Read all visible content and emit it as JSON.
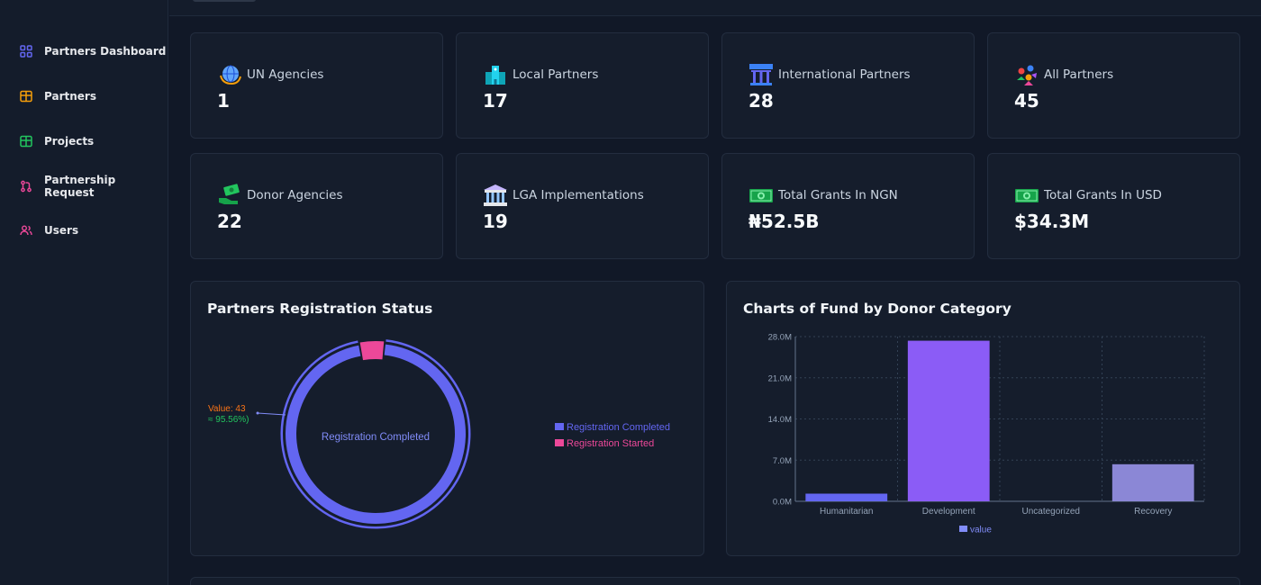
{
  "sidebar": {
    "items": [
      {
        "label": "Partners Dashboard",
        "icon": "grid-icon",
        "color": "#6366f1"
      },
      {
        "label": "Partners",
        "icon": "table-icon",
        "color": "#f59e0b"
      },
      {
        "label": "Projects",
        "icon": "table-icon",
        "color": "#22c55e"
      },
      {
        "label": "Partnership Request",
        "icon": "pull-request-icon",
        "color": "#ec4899"
      },
      {
        "label": "Users",
        "icon": "users-icon",
        "color": "#ec4899"
      }
    ]
  },
  "stats": [
    {
      "label": "UN Agencies",
      "value": "1",
      "icon": "globe-icon"
    },
    {
      "label": "Local Partners",
      "value": "17",
      "icon": "hospital-icon"
    },
    {
      "label": "International Partners",
      "value": "28",
      "icon": "ngo-building-icon"
    },
    {
      "label": "All Partners",
      "value": "45",
      "icon": "people-group-icon"
    },
    {
      "label": "Donor Agencies",
      "value": "22",
      "icon": "hand-money-icon"
    },
    {
      "label": "LGA Implementations",
      "value": "19",
      "icon": "government-building-icon"
    },
    {
      "label": "Total Grants In NGN",
      "value": "₦52.5B",
      "icon": "cash-icon"
    },
    {
      "label": "Total Grants In USD",
      "value": "$34.3M",
      "icon": "cash-icon"
    }
  ],
  "registration": {
    "title": "Partners Registration Status",
    "center_label": "Registration Completed",
    "tooltip_value": "Value: 43",
    "tooltip_percent": "≈ 95.56%)",
    "colors": {
      "completed": "#6366f1",
      "started": "#ec4899"
    },
    "chart_data": {
      "type": "pie",
      "categories": [
        "Registration Completed",
        "Registration Started"
      ],
      "values": [
        43,
        2
      ]
    }
  },
  "funds": {
    "title": "Charts of Fund by Donor Category",
    "legend": "value",
    "colors": [
      "#6366f1",
      "#8b5cf6",
      "#a78bfa",
      "#8b87d6"
    ],
    "chart_data": {
      "type": "bar",
      "categories": [
        "Humanitarian",
        "Development",
        "Uncategorized",
        "Recovery"
      ],
      "values": [
        1.3,
        27.3,
        0,
        6.3
      ],
      "series": [
        {
          "name": "value",
          "values": [
            1.3,
            27.3,
            0,
            6.3
          ]
        }
      ],
      "ylim": [
        0,
        28
      ],
      "yticks": [
        "0.0M",
        "7.0M",
        "14.0M",
        "21.0M",
        "28.0M"
      ],
      "tick_values": [
        0,
        7,
        14,
        21,
        28
      ],
      "grid": true,
      "legend": "bottom"
    }
  }
}
